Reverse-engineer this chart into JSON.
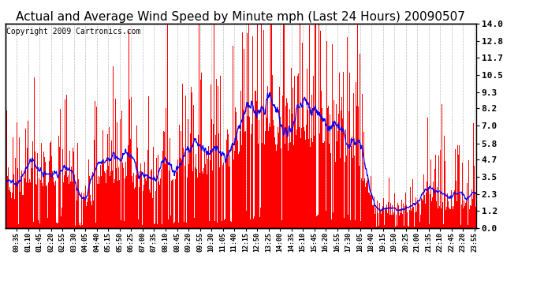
{
  "title": "Actual and Average Wind Speed by Minute mph (Last 24 Hours) 20090507",
  "copyright": "Copyright 2009 Cartronics.com",
  "yticks": [
    0.0,
    1.2,
    2.3,
    3.5,
    4.7,
    5.8,
    7.0,
    8.2,
    9.3,
    10.5,
    11.7,
    12.8,
    14.0
  ],
  "ylim": [
    0.0,
    14.0
  ],
  "bar_color": "#FF0000",
  "line_color": "#0000FF",
  "background_color": "#FFFFFF",
  "grid_color": "#BBBBBB",
  "title_fontsize": 11,
  "copyright_fontsize": 7
}
